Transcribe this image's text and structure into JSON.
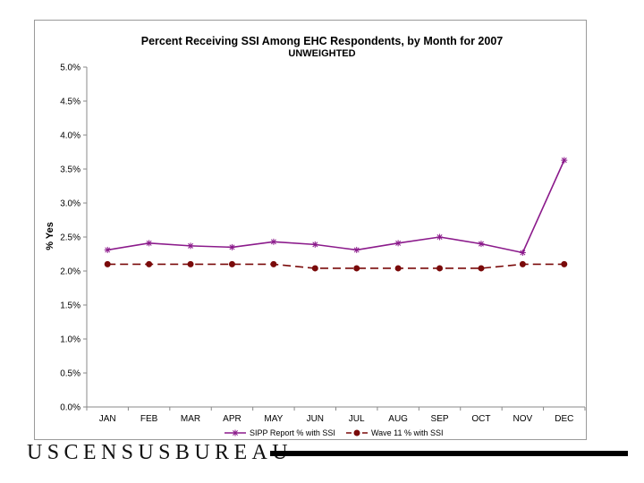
{
  "footer": {
    "logo_text": "USCENSUSBUREAU"
  },
  "chart_data": {
    "type": "line",
    "title": "Percent Receiving SSI Among EHC Respondents, by Month for 2007",
    "subtitle": "UNWEIGHTED",
    "xlabel": "",
    "ylabel": "% Yes",
    "categories": [
      "JAN",
      "FEB",
      "MAR",
      "APR",
      "MAY",
      "JUN",
      "JUL",
      "AUG",
      "SEP",
      "OCT",
      "NOV",
      "DEC"
    ],
    "ylim": [
      0,
      5.0
    ],
    "yticks": [
      "0.0%",
      "0.5%",
      "1.0%",
      "1.5%",
      "2.0%",
      "2.5%",
      "3.0%",
      "3.5%",
      "4.0%",
      "4.5%",
      "5.0%"
    ],
    "ytick_values": [
      0,
      0.5,
      1.0,
      1.5,
      2.0,
      2.5,
      3.0,
      3.5,
      4.0,
      4.5,
      5.0
    ],
    "grid": false,
    "legend_position": "bottom",
    "series": [
      {
        "name": "SIPP Report % with SSI",
        "color": "#8b1a8b",
        "line_style": "solid",
        "marker": "asterisk",
        "values": [
          2.31,
          2.41,
          2.37,
          2.35,
          2.43,
          2.39,
          2.31,
          2.41,
          2.5,
          2.4,
          2.27,
          3.63
        ]
      },
      {
        "name": "Wave 11 % with SSI",
        "color": "#7a0a0a",
        "line_style": "dashed",
        "marker": "circle",
        "values": [
          2.1,
          2.1,
          2.1,
          2.1,
          2.1,
          2.04,
          2.04,
          2.04,
          2.04,
          2.04,
          2.1,
          2.1
        ]
      }
    ]
  }
}
